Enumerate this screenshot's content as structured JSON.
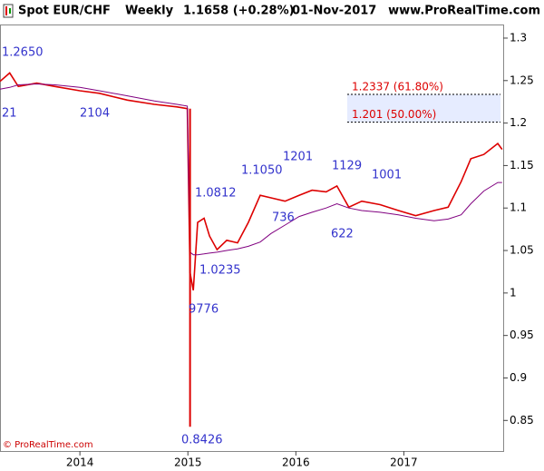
{
  "chart_data": {
    "type": "line",
    "header": {
      "symbol": "Spot EUR/CHF",
      "period": "Weekly",
      "quote": "1.1658 (+0.28%)",
      "date": "01-Nov-2017",
      "site": "www.ProRealTime.com"
    },
    "footer": "© ProRealTime.com",
    "x": [
      2013.26,
      2013.35,
      2013.43,
      2013.6,
      2013.77,
      2014.0,
      2014.18,
      2014.44,
      2014.69,
      2014.9,
      2014.995,
      2015.02,
      2015.05,
      2015.09,
      2015.15,
      2015.2,
      2015.27,
      2015.36,
      2015.46,
      2015.56,
      2015.67,
      2015.77,
      2015.9,
      2016.03,
      2016.15,
      2016.28,
      2016.38,
      2016.49,
      2016.61,
      2016.78,
      2016.95,
      2017.11,
      2017.28,
      2017.41,
      2017.53,
      2017.62,
      2017.74,
      2017.87,
      2017.91
    ],
    "series": [
      {
        "color": "#dd0000",
        "values": [
          1.249,
          1.259,
          1.243,
          1.247,
          1.243,
          1.238,
          1.235,
          1.227,
          1.222,
          1.219,
          1.217,
          1.024,
          1.003,
          1.083,
          1.088,
          1.067,
          1.051,
          1.062,
          1.059,
          1.083,
          1.115,
          1.112,
          1.108,
          1.115,
          1.121,
          1.119,
          1.126,
          1.101,
          1.108,
          1.104,
          1.097,
          1.091,
          1.097,
          1.101,
          1.131,
          1.158,
          1.163,
          1.176,
          1.169
        ]
      },
      {
        "color": "#800080",
        "values": [
          1.24,
          1.242,
          1.245,
          1.246,
          1.245,
          1.242,
          1.238,
          1.232,
          1.226,
          1.222,
          1.22,
          1.048,
          1.045,
          1.045,
          1.046,
          1.047,
          1.048,
          1.05,
          1.052,
          1.055,
          1.06,
          1.07,
          1.08,
          1.09,
          1.095,
          1.1,
          1.105,
          1.1,
          1.097,
          1.095,
          1.092,
          1.088,
          1.085,
          1.087,
          1.092,
          1.105,
          1.12,
          1.13,
          1.13
        ]
      }
    ],
    "low": {
      "x": 2015.02,
      "value": 0.8426
    },
    "levels": [
      {
        "value": 1.2337,
        "label": "1.2337 (61.80%)"
      },
      {
        "value": 1.201,
        "label": "1.201 (50.00%)"
      }
    ],
    "annotations": [
      "1.2650",
      "21",
      "2104",
      "1.0812",
      "1.1050",
      "1201",
      "1129",
      "1001",
      "736",
      "622",
      "1.0235",
      "9776",
      "0.8426"
    ],
    "xlim": [
      2013.26,
      2017.92
    ],
    "xticks": [
      2014,
      2015,
      2016,
      2017
    ],
    "ylim": [
      0.814,
      1.316
    ],
    "yticks": [
      1.3,
      1.25,
      1.2,
      1.15,
      1.1,
      1.05,
      1,
      0.95,
      0.9,
      0.85
    ]
  }
}
